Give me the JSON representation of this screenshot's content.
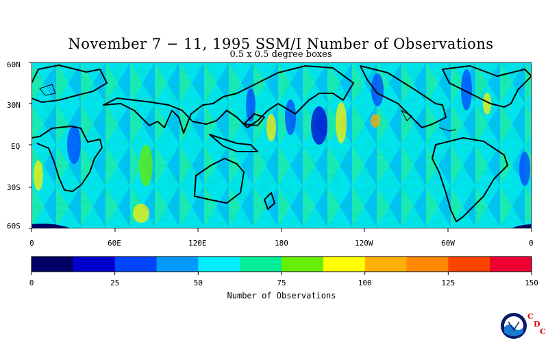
{
  "title": "November 7 − 11, 1995 SSM/I Number of Observations",
  "subtitle": "0.5 x 0.5 degree boxes",
  "lat_labels": [
    "60N",
    "30N",
    "EQ",
    "30S",
    "60S"
  ],
  "lon_labels": [
    "0",
    "60E",
    "120E",
    "180",
    "120W",
    "60W",
    "0"
  ],
  "colorbar": {
    "label": "Number of Observations",
    "ticks": [
      "0",
      "25",
      "50",
      "75",
      "100",
      "125",
      "150"
    ],
    "colors": [
      "#000066",
      "#0000cc",
      "#0044ff",
      "#0099ff",
      "#00eeff",
      "#00ee99",
      "#66ee00",
      "#ffff00",
      "#ffb000",
      "#ff8800",
      "#ff4400",
      "#ee0033"
    ]
  },
  "logo": {
    "text": "NOAA",
    "letters": [
      "C",
      "D",
      "C"
    ]
  }
}
